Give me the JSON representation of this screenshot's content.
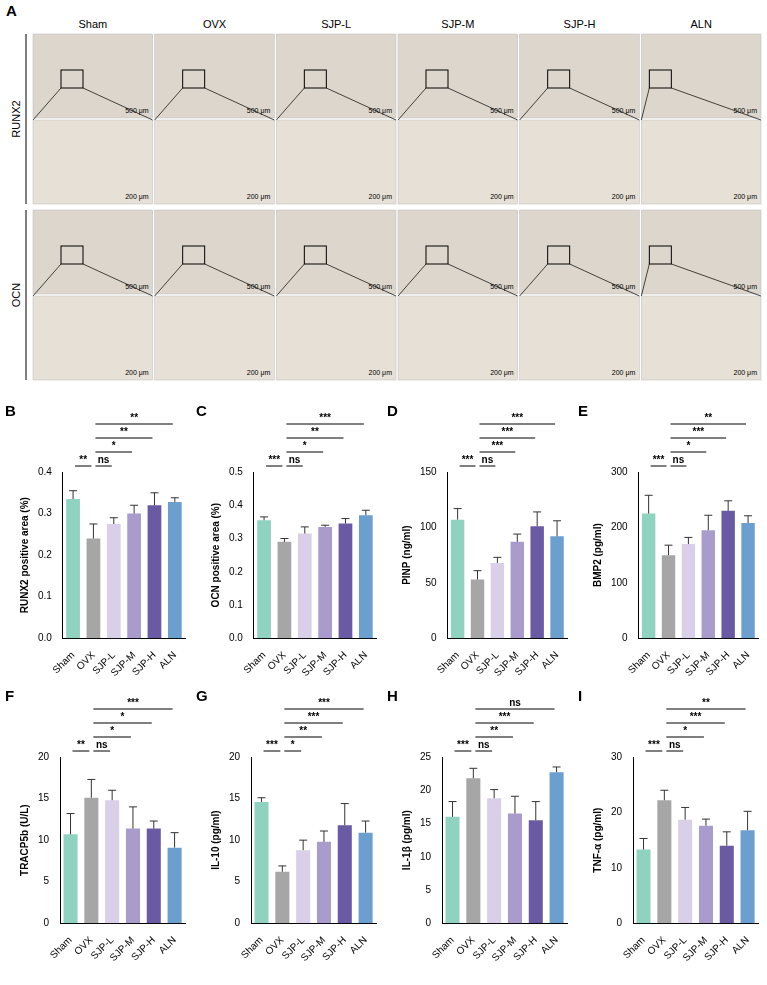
{
  "histology": {
    "panel": "A",
    "columns": [
      "Sham",
      "OVX",
      "SJP-L",
      "SJP-M",
      "SJP-H",
      "ALN"
    ],
    "rows": [
      "RUNX2",
      "OCN"
    ],
    "scale_bars": [
      "500 μm",
      "200 μm"
    ]
  },
  "chart_data": [
    {
      "panel": "B",
      "type": "bar",
      "y_label": "RUNX2 positive area (%)",
      "categories": [
        "Sham",
        "OVX",
        "SJP-L",
        "SJP-M",
        "SJP-H",
        "ALN"
      ],
      "values": [
        0.335,
        0.24,
        0.275,
        0.3,
        0.32,
        0.328
      ],
      "errors": [
        0.02,
        0.035,
        0.015,
        0.02,
        0.03,
        0.01
      ],
      "colors": [
        "#90d2c0",
        "#a6a6a6",
        "#d9cfe9",
        "#a99bcc",
        "#6a5aa3",
        "#6b9fcf"
      ],
      "ylim": [
        0,
        0.4
      ],
      "yticks": [
        {
          "value": 0,
          "label": "0.0"
        },
        0.1,
        0.2,
        0.3,
        0.4
      ],
      "grid": false,
      "comparisons": [
        {
          "pair": [
            "Sham",
            "OVX"
          ],
          "label": "**"
        },
        {
          "pair": [
            "OVX",
            "SJP-L"
          ],
          "label": "ns"
        },
        {
          "pair": [
            "OVX",
            "SJP-M"
          ],
          "label": "*"
        },
        {
          "pair": [
            "OVX",
            "SJP-H"
          ],
          "label": "**"
        },
        {
          "pair": [
            "OVX",
            "ALN"
          ],
          "label": "**"
        }
      ]
    },
    {
      "panel": "C",
      "type": "bar",
      "y_label": "OCN positive area (%)",
      "categories": [
        "Sham",
        "OVX",
        "SJP-L",
        "SJP-M",
        "SJP-H",
        "ALN"
      ],
      "values": [
        0.355,
        0.29,
        0.315,
        0.335,
        0.345,
        0.37
      ],
      "errors": [
        0.01,
        0.01,
        0.02,
        0.005,
        0.015,
        0.015
      ],
      "colors": [
        "#90d2c0",
        "#a6a6a6",
        "#d9cfe9",
        "#a99bcc",
        "#6a5aa3",
        "#6b9fcf"
      ],
      "ylim": [
        0,
        0.5
      ],
      "yticks": [
        {
          "value": 0,
          "label": "0.0"
        },
        0.1,
        0.2,
        0.3,
        0.4,
        0.5
      ],
      "grid": false,
      "comparisons": [
        {
          "pair": [
            "Sham",
            "OVX"
          ],
          "label": "***"
        },
        {
          "pair": [
            "OVX",
            "SJP-L"
          ],
          "label": "ns"
        },
        {
          "pair": [
            "OVX",
            "SJP-M"
          ],
          "label": "*"
        },
        {
          "pair": [
            "OVX",
            "SJP-H"
          ],
          "label": "**"
        },
        {
          "pair": [
            "OVX",
            "ALN"
          ],
          "label": "***"
        }
      ]
    },
    {
      "panel": "D",
      "type": "bar",
      "y_label": "PINP (ng/ml)",
      "categories": [
        "Sham",
        "OVX",
        "SJP-L",
        "SJP-M",
        "SJP-H",
        "ALN"
      ],
      "values": [
        107,
        53,
        68,
        87,
        101,
        92
      ],
      "errors": [
        10,
        8,
        5,
        7,
        13,
        14
      ],
      "colors": [
        "#90d2c0",
        "#a6a6a6",
        "#d9cfe9",
        "#a99bcc",
        "#6a5aa3",
        "#6b9fcf"
      ],
      "ylim": [
        0,
        150
      ],
      "yticks": [
        0,
        50,
        100,
        150
      ],
      "grid": false,
      "comparisons": [
        {
          "pair": [
            "Sham",
            "OVX"
          ],
          "label": "***"
        },
        {
          "pair": [
            "OVX",
            "SJP-L"
          ],
          "label": "ns"
        },
        {
          "pair": [
            "OVX",
            "SJP-M"
          ],
          "label": "***"
        },
        {
          "pair": [
            "OVX",
            "SJP-H"
          ],
          "label": "***"
        },
        {
          "pair": [
            "OVX",
            "ALN"
          ],
          "label": "***"
        }
      ]
    },
    {
      "panel": "E",
      "type": "bar",
      "y_label": "BMP2 (pg/ml)",
      "categories": [
        "Sham",
        "OVX",
        "SJP-L",
        "SJP-M",
        "SJP-H",
        "ALN"
      ],
      "values": [
        225,
        150,
        170,
        195,
        230,
        208
      ],
      "errors": [
        33,
        18,
        12,
        27,
        18,
        13
      ],
      "colors": [
        "#90d2c0",
        "#a6a6a6",
        "#d9cfe9",
        "#a99bcc",
        "#6a5aa3",
        "#6b9fcf"
      ],
      "ylim": [
        0,
        300
      ],
      "yticks": [
        0,
        100,
        200,
        300
      ],
      "grid": false,
      "comparisons": [
        {
          "pair": [
            "Sham",
            "OVX"
          ],
          "label": "***"
        },
        {
          "pair": [
            "OVX",
            "SJP-L"
          ],
          "label": "ns"
        },
        {
          "pair": [
            "OVX",
            "SJP-M"
          ],
          "label": "*"
        },
        {
          "pair": [
            "OVX",
            "SJP-H"
          ],
          "label": "***"
        },
        {
          "pair": [
            "OVX",
            "ALN"
          ],
          "label": "**"
        }
      ]
    },
    {
      "panel": "F",
      "type": "bar",
      "y_label": "TRACP5b (U/L)",
      "categories": [
        "Sham",
        "OVX",
        "SJP-L",
        "SJP-M",
        "SJP-H",
        "ALN"
      ],
      "values": [
        10.7,
        15.1,
        14.8,
        11.4,
        11.4,
        9.1
      ],
      "errors": [
        2.5,
        2.2,
        1.2,
        2.6,
        0.9,
        1.8
      ],
      "colors": [
        "#90d2c0",
        "#a6a6a6",
        "#d9cfe9",
        "#a99bcc",
        "#6a5aa3",
        "#6b9fcf"
      ],
      "ylim": [
        0,
        20
      ],
      "yticks": [
        0,
        5,
        10,
        15,
        20
      ],
      "grid": false,
      "comparisons": [
        {
          "pair": [
            "Sham",
            "OVX"
          ],
          "label": "**"
        },
        {
          "pair": [
            "OVX",
            "SJP-L"
          ],
          "label": "ns"
        },
        {
          "pair": [
            "OVX",
            "SJP-M"
          ],
          "label": "*"
        },
        {
          "pair": [
            "OVX",
            "SJP-H"
          ],
          "label": "*"
        },
        {
          "pair": [
            "OVX",
            "ALN"
          ],
          "label": "***"
        }
      ]
    },
    {
      "panel": "G",
      "type": "bar",
      "y_label": "IL-10 (pg/ml)",
      "categories": [
        "Sham",
        "OVX",
        "SJP-L",
        "SJP-M",
        "SJP-H",
        "ALN"
      ],
      "values": [
        14.6,
        6.2,
        8.8,
        9.8,
        11.8,
        10.9
      ],
      "errors": [
        0.5,
        0.7,
        1.2,
        1.3,
        2.6,
        1.4
      ],
      "colors": [
        "#90d2c0",
        "#a6a6a6",
        "#d9cfe9",
        "#a99bcc",
        "#6a5aa3",
        "#6b9fcf"
      ],
      "ylim": [
        0,
        20
      ],
      "yticks": [
        0,
        5,
        10,
        15,
        20
      ],
      "grid": false,
      "comparisons": [
        {
          "pair": [
            "Sham",
            "OVX"
          ],
          "label": "***"
        },
        {
          "pair": [
            "OVX",
            "SJP-L"
          ],
          "label": "*"
        },
        {
          "pair": [
            "OVX",
            "SJP-M"
          ],
          "label": "**"
        },
        {
          "pair": [
            "OVX",
            "SJP-H"
          ],
          "label": "***"
        },
        {
          "pair": [
            "OVX",
            "ALN"
          ],
          "label": "***"
        }
      ]
    },
    {
      "panel": "H",
      "type": "bar",
      "y_label": "IL-1β (pg/ml)",
      "categories": [
        "Sham",
        "OVX",
        "SJP-L",
        "SJP-M",
        "SJP-H",
        "ALN"
      ],
      "values": [
        16,
        21.8,
        18.8,
        16.5,
        15.5,
        22.7
      ],
      "errors": [
        2.3,
        1.5,
        1.3,
        2.6,
        2.8,
        0.8
      ],
      "colors": [
        "#90d2c0",
        "#a6a6a6",
        "#d9cfe9",
        "#a99bcc",
        "#6a5aa3",
        "#6b9fcf"
      ],
      "ylim": [
        0,
        25
      ],
      "yticks": [
        0,
        5,
        10,
        15,
        20,
        25
      ],
      "grid": false,
      "comparisons": [
        {
          "pair": [
            "Sham",
            "OVX"
          ],
          "label": "***"
        },
        {
          "pair": [
            "OVX",
            "SJP-L"
          ],
          "label": "ns"
        },
        {
          "pair": [
            "OVX",
            "SJP-M"
          ],
          "label": "**"
        },
        {
          "pair": [
            "OVX",
            "SJP-H"
          ],
          "label": "***"
        },
        {
          "pair": [
            "OVX",
            "ALN"
          ],
          "label": "ns"
        }
      ]
    },
    {
      "panel": "I",
      "type": "bar",
      "y_label": "TNF-α (pg/ml)",
      "categories": [
        "Sham",
        "OVX",
        "SJP-L",
        "SJP-M",
        "SJP-H",
        "ALN"
      ],
      "values": [
        13.3,
        22.2,
        18.7,
        17.6,
        14,
        16.8
      ],
      "errors": [
        2,
        1.8,
        2.2,
        1.2,
        2.5,
        3.4
      ],
      "colors": [
        "#90d2c0",
        "#a6a6a6",
        "#d9cfe9",
        "#a99bcc",
        "#6a5aa3",
        "#6b9fcf"
      ],
      "ylim": [
        0,
        30
      ],
      "yticks": [
        0,
        10,
        20,
        30
      ],
      "grid": false,
      "comparisons": [
        {
          "pair": [
            "Sham",
            "OVX"
          ],
          "label": "***"
        },
        {
          "pair": [
            "OVX",
            "SJP-L"
          ],
          "label": "ns"
        },
        {
          "pair": [
            "OVX",
            "SJP-M"
          ],
          "label": "*"
        },
        {
          "pair": [
            "OVX",
            "SJP-H"
          ],
          "label": "***"
        },
        {
          "pair": [
            "OVX",
            "ALN"
          ],
          "label": "**"
        }
      ]
    }
  ]
}
